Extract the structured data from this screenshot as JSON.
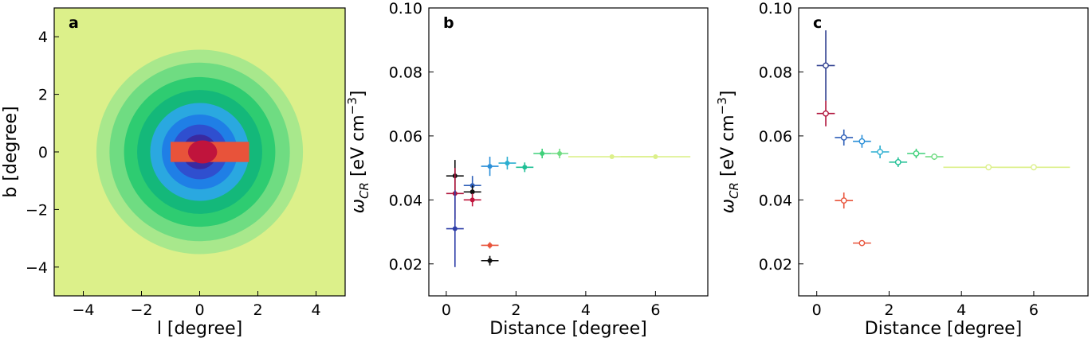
{
  "chart_data": [
    {
      "panel": "a",
      "type": "heatmap",
      "xlabel": "l [degree]",
      "ylabel": "b [degree]",
      "xlim": [
        -5,
        5
      ],
      "ylim": [
        -5,
        5
      ],
      "xticks": [
        -4,
        -2,
        0,
        2,
        4
      ],
      "yticks": [
        -4,
        -2,
        0,
        2,
        4
      ],
      "background_color": "#dcf08a",
      "rings": [
        {
          "radius": 3.55,
          "color": "#a8e88c"
        },
        {
          "radius": 3.1,
          "color": "#6fdc82"
        },
        {
          "radius": 2.6,
          "color": "#2ecc71"
        },
        {
          "radius": 2.15,
          "color": "#14b87a"
        },
        {
          "radius": 1.7,
          "color": "#2aa8e0"
        },
        {
          "radius": 1.3,
          "color": "#1f7fe6"
        },
        {
          "radius": 0.95,
          "color": "#2f4fcf"
        },
        {
          "radius": 0.6,
          "color": "#3a2aa0"
        }
      ],
      "central_feature": {
        "l_range": [
          -1.0,
          1.7
        ],
        "b_range": [
          -0.35,
          0.35
        ],
        "colors": [
          "#e8533a",
          "#c0143c"
        ]
      }
    },
    {
      "panel": "b",
      "type": "scatter",
      "xlabel": "Distance [degree]",
      "ylabel": "ω_CR [eV cm^-3]",
      "xlim": [
        -0.5,
        7.5
      ],
      "ylim": [
        0.01,
        0.1
      ],
      "xticks": [
        0,
        2,
        4,
        6
      ],
      "yticks": [
        0.02,
        0.04,
        0.06,
        0.08,
        0.1
      ],
      "marker": "filled",
      "points": [
        {
          "x": 0.25,
          "y": 0.0475,
          "xerr": 0.25,
          "yerr": 0.005,
          "color": "#111111"
        },
        {
          "x": 0.25,
          "y": 0.042,
          "xerr": 0.25,
          "yerr": 0.008,
          "color": "#b0143c"
        },
        {
          "x": 0.25,
          "y": 0.031,
          "xerr": 0.25,
          "yerr": 0.012,
          "color": "#2f3fa8"
        },
        {
          "x": 0.75,
          "y": 0.0445,
          "xerr": 0.25,
          "yerr": 0.003,
          "color": "#2e5fb8"
        },
        {
          "x": 0.75,
          "y": 0.0425,
          "xerr": 0.25,
          "yerr": 0.002,
          "color": "#111111"
        },
        {
          "x": 0.75,
          "y": 0.04,
          "xerr": 0.25,
          "yerr": 0.002,
          "color": "#c0143c"
        },
        {
          "x": 1.25,
          "y": 0.0505,
          "xerr": 0.25,
          "yerr": 0.003,
          "color": "#2a8fd8"
        },
        {
          "x": 1.25,
          "y": 0.0258,
          "xerr": 0.25,
          "yerr": 0.001,
          "color": "#e8533a"
        },
        {
          "x": 1.25,
          "y": 0.021,
          "xerr": 0.25,
          "yerr": 0.0015,
          "color": "#111111"
        },
        {
          "x": 1.75,
          "y": 0.0515,
          "xerr": 0.25,
          "yerr": 0.002,
          "color": "#2aaed0"
        },
        {
          "x": 2.25,
          "y": 0.0502,
          "xerr": 0.25,
          "yerr": 0.0015,
          "color": "#1fbf95"
        },
        {
          "x": 2.75,
          "y": 0.0545,
          "xerr": 0.25,
          "yerr": 0.0015,
          "color": "#3fd07a"
        },
        {
          "x": 3.25,
          "y": 0.0545,
          "xerr": 0.25,
          "yerr": 0.0015,
          "color": "#6fdc82"
        },
        {
          "x": 4.75,
          "y": 0.0535,
          "xerr": 1.25,
          "yerr": 0.0005,
          "color": "#dcf08a"
        },
        {
          "x": 6.0,
          "y": 0.0535,
          "xerr": 1.0,
          "yerr": 0.0,
          "color": "#dcf08a"
        }
      ]
    },
    {
      "panel": "c",
      "type": "scatter",
      "xlabel": "Distance [degree]",
      "ylabel": "ω_CR [eV cm^-3]",
      "xlim": [
        -0.5,
        7.5
      ],
      "ylim": [
        0.01,
        0.1
      ],
      "xticks": [
        0,
        2,
        4,
        6
      ],
      "yticks": [
        0.02,
        0.04,
        0.06,
        0.08,
        0.1
      ],
      "marker": "open",
      "points": [
        {
          "x": 0.25,
          "y": 0.082,
          "xerr": 0.25,
          "yerr": 0.011,
          "color": "#2f3f8f"
        },
        {
          "x": 0.25,
          "y": 0.067,
          "xerr": 0.25,
          "yerr": 0.004,
          "color": "#b0143c"
        },
        {
          "x": 0.75,
          "y": 0.0595,
          "xerr": 0.25,
          "yerr": 0.0025,
          "color": "#2e5fb8"
        },
        {
          "x": 0.75,
          "y": 0.0398,
          "xerr": 0.25,
          "yerr": 0.0025,
          "color": "#e8533a"
        },
        {
          "x": 1.25,
          "y": 0.0583,
          "xerr": 0.25,
          "yerr": 0.002,
          "color": "#2a8fd8"
        },
        {
          "x": 1.25,
          "y": 0.0265,
          "xerr": 0.25,
          "yerr": 0.0005,
          "color": "#e8533a"
        },
        {
          "x": 1.75,
          "y": 0.055,
          "xerr": 0.25,
          "yerr": 0.002,
          "color": "#2aaed0"
        },
        {
          "x": 2.25,
          "y": 0.0518,
          "xerr": 0.25,
          "yerr": 0.0015,
          "color": "#1fbf95"
        },
        {
          "x": 2.75,
          "y": 0.0545,
          "xerr": 0.25,
          "yerr": 0.0015,
          "color": "#3fd07a"
        },
        {
          "x": 3.25,
          "y": 0.0535,
          "xerr": 0.25,
          "yerr": 0.001,
          "color": "#6fdc82"
        },
        {
          "x": 4.75,
          "y": 0.0502,
          "xerr": 1.25,
          "yerr": 0.0003,
          "color": "#dcf08a"
        },
        {
          "x": 6.0,
          "y": 0.0502,
          "xerr": 1.0,
          "yerr": 0.0,
          "color": "#dcf08a"
        }
      ]
    }
  ]
}
